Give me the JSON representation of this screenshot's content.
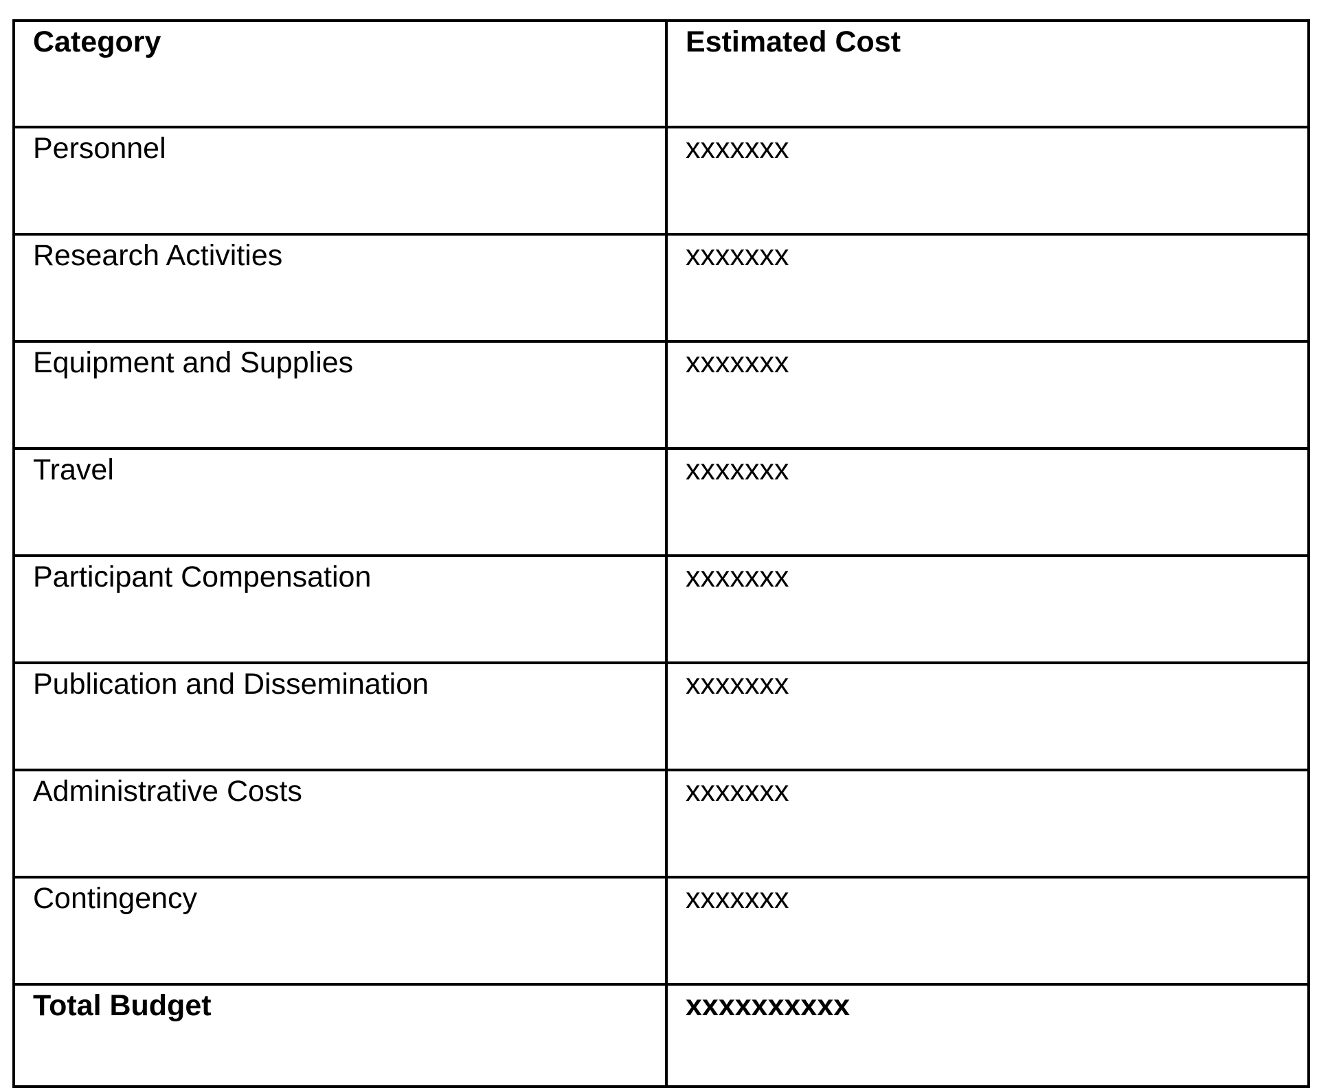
{
  "colors": {
    "background": "#ffffff",
    "border": "#000000",
    "text": "#000000"
  },
  "table": {
    "header": {
      "category": "Category",
      "estimated_cost": "Estimated Cost"
    },
    "rows": [
      {
        "category": "Personnel",
        "cost": "xxxxxxx"
      },
      {
        "category": "Research Activities",
        "cost": "xxxxxxx"
      },
      {
        "category": "Equipment and Supplies",
        "cost": "xxxxxxx"
      },
      {
        "category": "Travel",
        "cost": "xxxxxxx"
      },
      {
        "category": "Participant Compensation",
        "cost": "xxxxxxx"
      },
      {
        "category": "Publication and Dissemination",
        "cost": "xxxxxxx"
      },
      {
        "category": "Administrative Costs",
        "cost": "xxxxxxx"
      },
      {
        "category": "Contingency",
        "cost": "xxxxxxx"
      }
    ],
    "total_row": {
      "category": "Total Budget",
      "cost": "xxxxxxxxxx"
    }
  }
}
